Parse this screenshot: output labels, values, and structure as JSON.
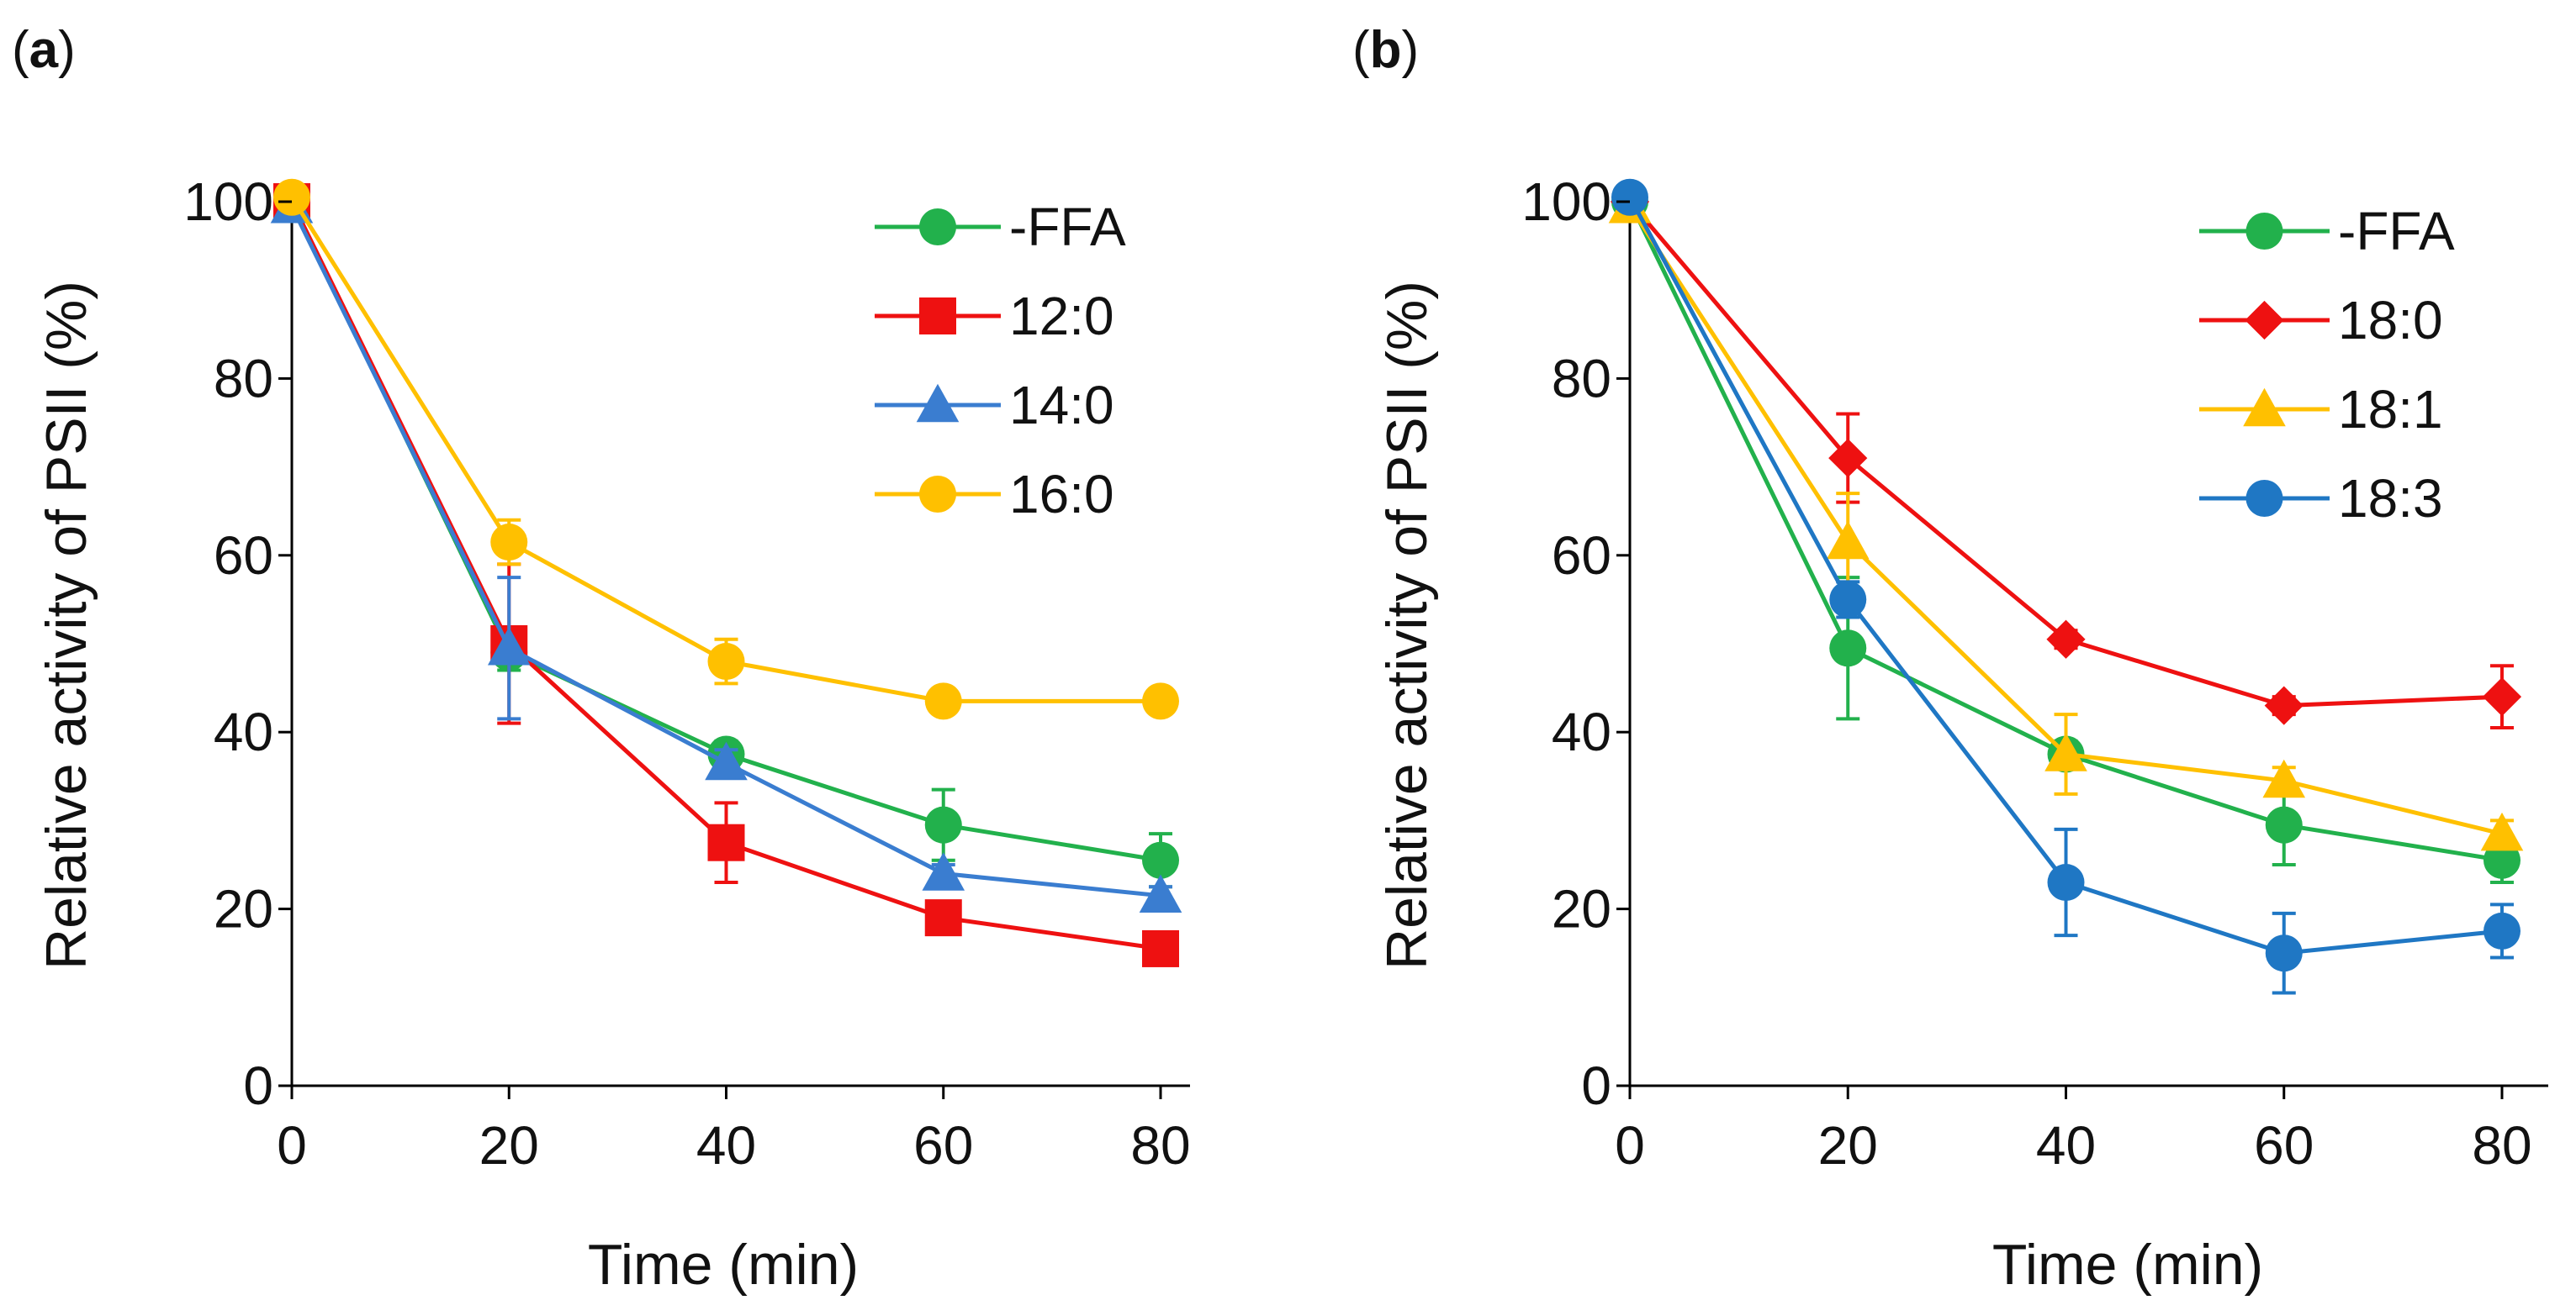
{
  "chart_data": [
    {
      "panel_label": "a",
      "type": "line",
      "xlabel": "Time (min)",
      "ylabel": "Relative activity of PSII (%)",
      "xlim": [
        0,
        80
      ],
      "ylim": [
        0,
        100
      ],
      "xticks": [
        "0",
        "20",
        "40",
        "60",
        "80"
      ],
      "yticks": [
        "0",
        "20",
        "40",
        "60",
        "80",
        "100"
      ],
      "grid": false,
      "legend_position": "top-right",
      "x": [
        0,
        20,
        40,
        60,
        80
      ],
      "series": [
        {
          "name": "-FFA",
          "color": "#22b14c",
          "marker": "circle",
          "values": [
            100,
            49,
            37.5,
            29.5,
            25.5
          ],
          "errors": [
            1,
            2,
            1.5,
            4,
            3
          ]
        },
        {
          "name": "12:0",
          "color": "#ee1111",
          "marker": "square",
          "values": [
            100,
            50,
            27.5,
            19,
            15.5
          ],
          "errors": [
            1.5,
            9,
            4.5,
            1,
            1
          ]
        },
        {
          "name": "14:0",
          "color": "#3a7dd0",
          "marker": "triangle",
          "values": [
            99.5,
            49.5,
            36.5,
            24,
            21.5
          ],
          "errors": [
            1.5,
            8,
            1.5,
            1,
            1
          ]
        },
        {
          "name": "16:0",
          "color": "#ffc000",
          "marker": "circle",
          "values": [
            100.5,
            61.5,
            48,
            43.5,
            43.5
          ],
          "errors": [
            1,
            2.5,
            2.5,
            1,
            1
          ]
        }
      ]
    },
    {
      "panel_label": "b",
      "type": "line",
      "xlabel": "Time (min)",
      "ylabel": "Relative activity of PSII (%)",
      "xlim": [
        0,
        80
      ],
      "ylim": [
        0,
        100
      ],
      "xticks": [
        "0",
        "20",
        "40",
        "60",
        "80"
      ],
      "yticks": [
        "0",
        "20",
        "40",
        "60",
        "80",
        "100"
      ],
      "grid": false,
      "legend_position": "top-right",
      "x": [
        0,
        20,
        40,
        60,
        80
      ],
      "series": [
        {
          "name": "-FFA",
          "color": "#22b14c",
          "marker": "circle",
          "values": [
            100,
            49.5,
            37.5,
            29.5,
            25.5
          ],
          "errors": [
            1,
            8,
            1.5,
            4.5,
            2.5
          ]
        },
        {
          "name": "18:0",
          "color": "#ee1111",
          "marker": "diamond",
          "values": [
            100,
            71,
            50.5,
            43,
            44
          ],
          "errors": [
            1,
            5,
            1,
            1,
            3.5
          ]
        },
        {
          "name": "18:1",
          "color": "#ffc000",
          "marker": "triangle",
          "values": [
            99.5,
            61.5,
            37.5,
            34.5,
            28.5
          ],
          "errors": [
            1.5,
            5.5,
            4.5,
            1.5,
            1.5
          ]
        },
        {
          "name": "18:3",
          "color": "#1f77c4",
          "marker": "circle",
          "values": [
            100.5,
            55,
            23,
            15,
            17.5
          ],
          "errors": [
            1,
            2,
            6,
            4.5,
            3
          ]
        }
      ]
    }
  ]
}
